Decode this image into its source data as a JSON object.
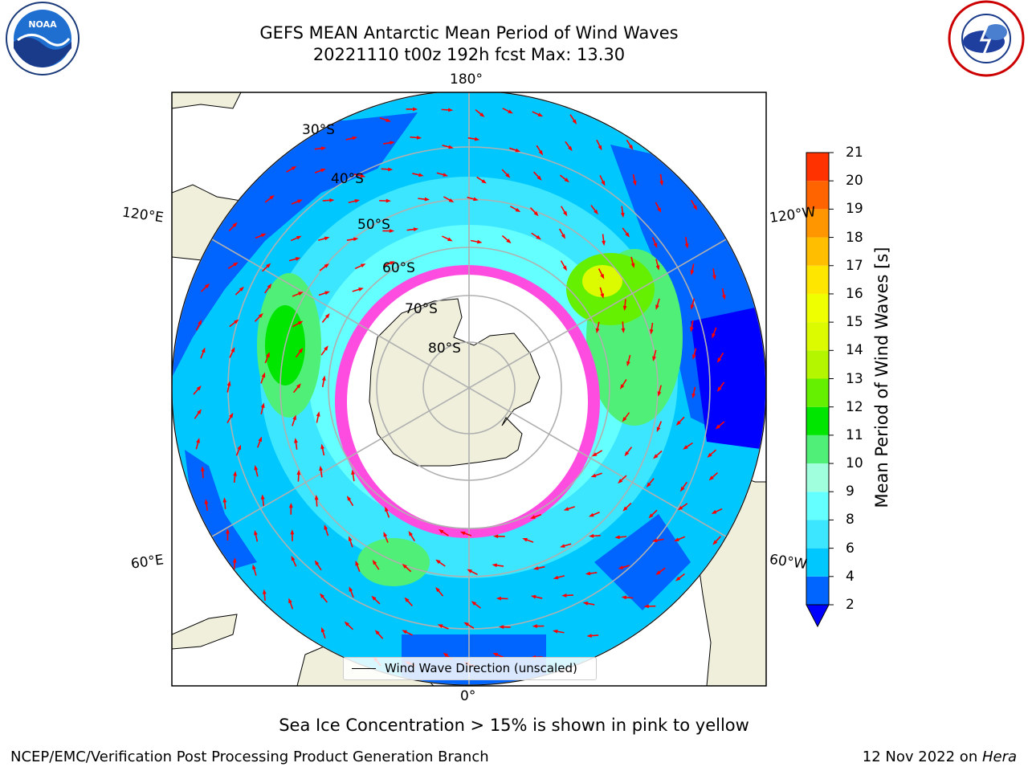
{
  "header": {
    "title_line1": "GEFS MEAN Antarctic Mean Period of Wind Waves",
    "title_line2": "20221110 t00z 192h fcst   Max: 13.30"
  },
  "logos": {
    "left": "NOAA",
    "right": "NATIONAL WEATHER SERVICE"
  },
  "map": {
    "projection": "south polar stereographic",
    "lon_labels": [
      "180°",
      "120°E",
      "60°E",
      "0°",
      "60°W",
      "120°W"
    ],
    "lat_labels": [
      "30°S",
      "40°S",
      "50°S",
      "60°S",
      "70°S",
      "80°S"
    ]
  },
  "colorbar": {
    "label": "Mean Period of Wind Waves [s]",
    "ticks": [
      2,
      4,
      6,
      8,
      9,
      10,
      11,
      12,
      13,
      14,
      15,
      16,
      17,
      18,
      19,
      20,
      21
    ],
    "colors": [
      "#0064ff",
      "#00c8ff",
      "#3ce6ff",
      "#64ffff",
      "#a0ffdc",
      "#50f078",
      "#00e600",
      "#64f000",
      "#b4f500",
      "#dcfa00",
      "#f0ff00",
      "#ffe600",
      "#ffbe00",
      "#ff9600",
      "#ff6400",
      "#ff3200"
    ],
    "under_color": "#0000ff"
  },
  "legend": {
    "label": "Wind Wave Direction (unscaled)"
  },
  "caption": "Sea Ice Concentration > 15% is shown in pink to yellow",
  "footer": {
    "left": "NCEP/EMC/Verification Post Processing Product Generation Branch",
    "right_date": "12 Nov 2022 on ",
    "right_host": "Hera"
  }
}
